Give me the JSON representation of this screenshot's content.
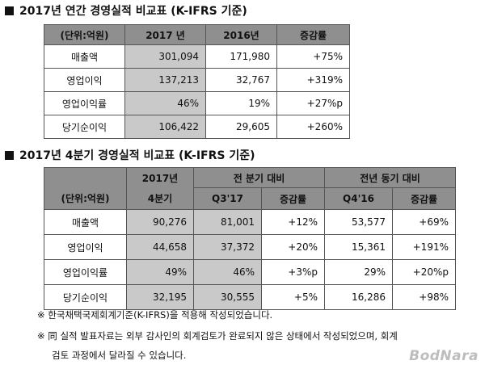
{
  "annual": {
    "title": "2017년 연간 경영실적 비교표 (K-IFRS 기준)",
    "headers": [
      "(단위:억원)",
      "2017 년",
      "2016년",
      "증감률"
    ],
    "rows": [
      {
        "label": "매출액",
        "v2017": "301,094",
        "v2016": "171,980",
        "change": "+75%"
      },
      {
        "label": "영업이익",
        "v2017": "137,213",
        "v2016": "32,767",
        "change": "+319%"
      },
      {
        "label": "영업이익률",
        "v2017": "46%",
        "v2016": "19%",
        "change": "+27%p"
      },
      {
        "label": "당기순이익",
        "v2017": "106,422",
        "v2016": "29,605",
        "change": "+260%"
      }
    ]
  },
  "quarterly": {
    "title": "2017년 4분기 경영실적 비교표 (K-IFRS 기준)",
    "unit_label": "(단위:억원)",
    "col_2017_top": "2017년",
    "col_2017_bottom": "4분기",
    "group_prev_q": "전 분기 대비",
    "group_prev_y": "전년 동기 대비",
    "sub_q3": "Q3'17",
    "sub_change": "증감률",
    "sub_q4_16": "Q4'16",
    "rows": [
      {
        "label": "매출액",
        "q4_17": "90,276",
        "q3_17": "81,001",
        "qoq": "+12%",
        "q4_16": "53,577",
        "yoy": "+69%"
      },
      {
        "label": "영업이익",
        "q4_17": "44,658",
        "q3_17": "37,372",
        "qoq": "+20%",
        "q4_16": "15,361",
        "yoy": "+191%"
      },
      {
        "label": "영업이익률",
        "q4_17": "49%",
        "q3_17": "46%",
        "qoq": "+3%p",
        "q4_16": "29%",
        "yoy": "+20%p"
      },
      {
        "label": "당기순이익",
        "q4_17": "32,195",
        "q3_17": "30,555",
        "qoq": "+5%",
        "q4_16": "16,286",
        "yoy": "+98%"
      }
    ]
  },
  "notes": [
    "※ 한국채택국제회계기준(K-IFRS)을 적용해 작성되었습니다.",
    "※ 同 실적 발표자료는 외부 감사인의 회계검토가 완료되지 않은 상태에서 작성되었으며, 회계",
    "검토 과정에서 달라질 수 있습니다."
  ],
  "logo_text": "BodNara"
}
